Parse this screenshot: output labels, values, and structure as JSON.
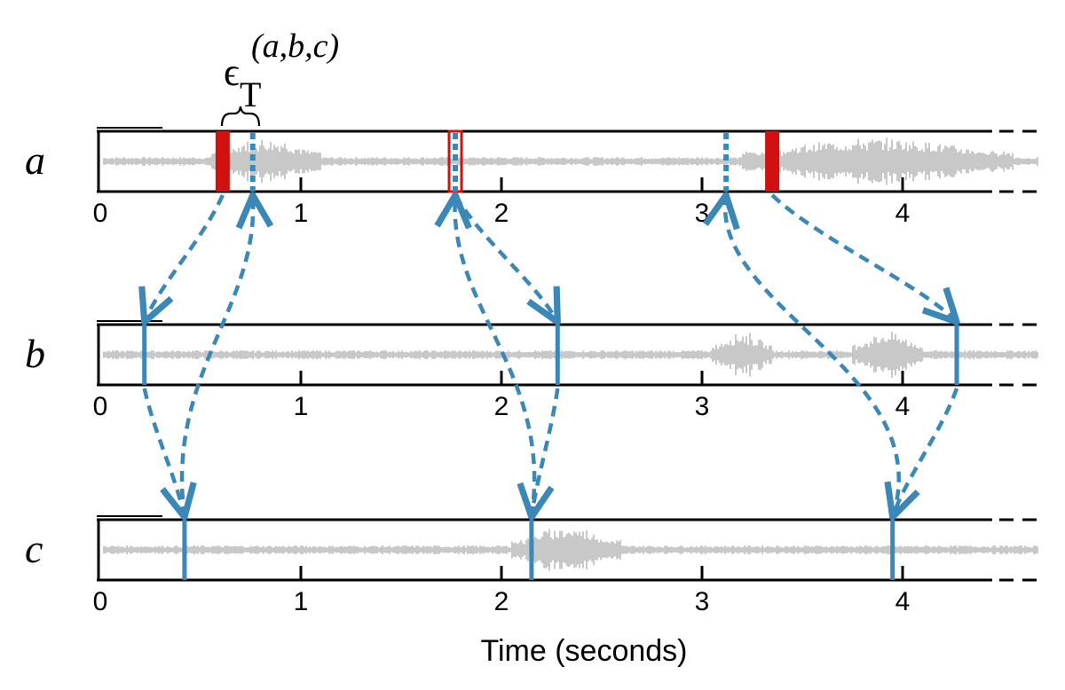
{
  "figure": {
    "annotation": {
      "main": "ϵ",
      "sub": "T",
      "sup": "(a,b,c)"
    },
    "xlabel": "Time (seconds)",
    "x_ticks": [
      0,
      1,
      2,
      3,
      4
    ],
    "x_range": [
      0,
      4.55
    ],
    "colors": {
      "waveform": "#c8c8c8",
      "red_marker": "#d11010",
      "blue_marker": "#3a87b8",
      "frame": "#000000"
    },
    "tracks": [
      {
        "id": "a",
        "label": "a",
        "red_markers": [
          0.61,
          1.77,
          3.35
        ],
        "blue_dotted_markers": [
          0.76,
          1.77,
          3.12
        ],
        "loud_regions": [
          [
            0.55,
            1.1
          ],
          [
            3.2,
            4.55
          ]
        ]
      },
      {
        "id": "b",
        "label": "b",
        "blue_markers": [
          0.22,
          2.28,
          4.27
        ],
        "loud_regions": [
          [
            3.05,
            3.35
          ],
          [
            3.75,
            4.1
          ]
        ]
      },
      {
        "id": "c",
        "label": "c",
        "blue_markers": [
          0.42,
          2.15,
          3.95
        ],
        "loud_regions": [
          [
            2.05,
            2.6
          ]
        ]
      }
    ],
    "arrows": [
      {
        "from_track": "a",
        "from_t": 0.61,
        "to_track": "b",
        "to_t": 0.22
      },
      {
        "from_track": "b",
        "from_t": 0.22,
        "to_track": "c",
        "to_t": 0.42
      },
      {
        "from_track": "c",
        "from_t": 0.42,
        "to_track": "a",
        "to_t": 0.76
      },
      {
        "from_track": "a",
        "from_t": 1.77,
        "to_track": "b",
        "to_t": 2.28
      },
      {
        "from_track": "b",
        "from_t": 2.28,
        "to_track": "c",
        "to_t": 2.15
      },
      {
        "from_track": "c",
        "from_t": 2.15,
        "to_track": "a",
        "to_t": 1.77
      },
      {
        "from_track": "a",
        "from_t": 3.35,
        "to_track": "b",
        "to_t": 4.27
      },
      {
        "from_track": "b",
        "from_t": 4.27,
        "to_track": "c",
        "to_t": 3.95
      },
      {
        "from_track": "c",
        "from_t": 3.95,
        "to_track": "a",
        "to_t": 3.12
      }
    ]
  }
}
